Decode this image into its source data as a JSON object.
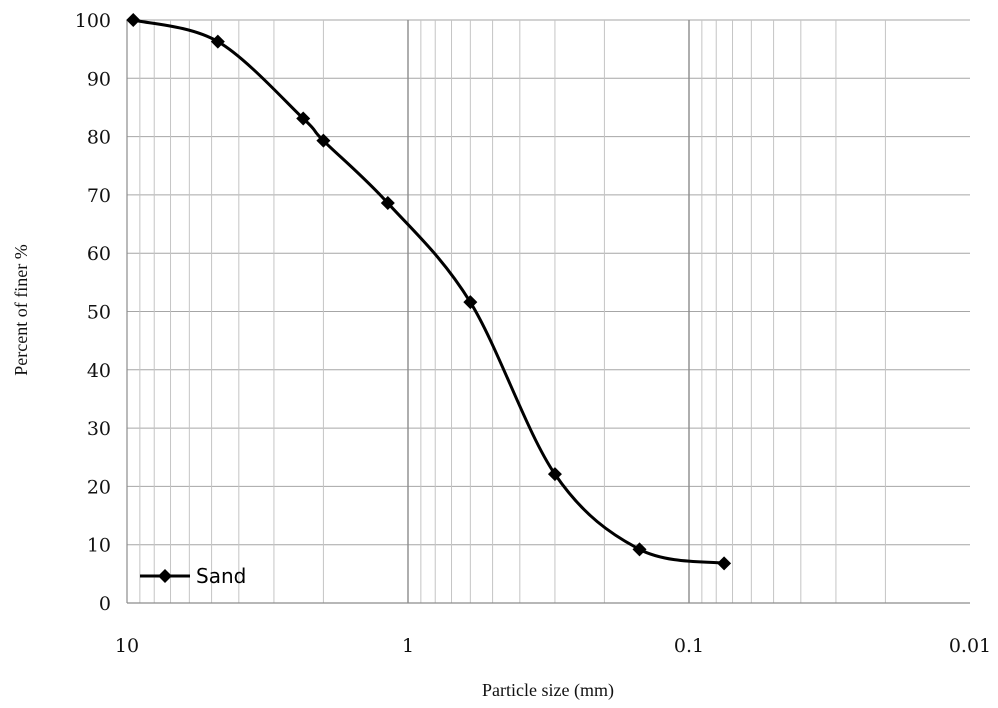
{
  "chart_data": {
    "type": "line",
    "xlabel": "Particle size (mm)",
    "ylabel": "Percent of finer %",
    "x_scale": "log",
    "x_reversed": true,
    "xlim": [
      10,
      0.01
    ],
    "ylim": [
      0,
      100
    ],
    "x_tick_labels": [
      "10",
      "1",
      "0.1",
      "0.01"
    ],
    "x_tick_values": [
      10,
      1,
      0.1,
      0.01
    ],
    "y_ticks": [
      0,
      10,
      20,
      30,
      40,
      50,
      60,
      70,
      80,
      90,
      100
    ],
    "grid": true,
    "legend_position": "bottom-left",
    "series": [
      {
        "name": "Sand",
        "color": "#000000",
        "marker": "diamond",
        "x": [
          9.5,
          4.75,
          2.36,
          2.0,
          1.18,
          0.6,
          0.3,
          0.15,
          0.075
        ],
        "y": [
          100,
          96.3,
          83.1,
          79.3,
          68.6,
          51.6,
          22.1,
          9.2,
          6.8
        ]
      }
    ]
  }
}
